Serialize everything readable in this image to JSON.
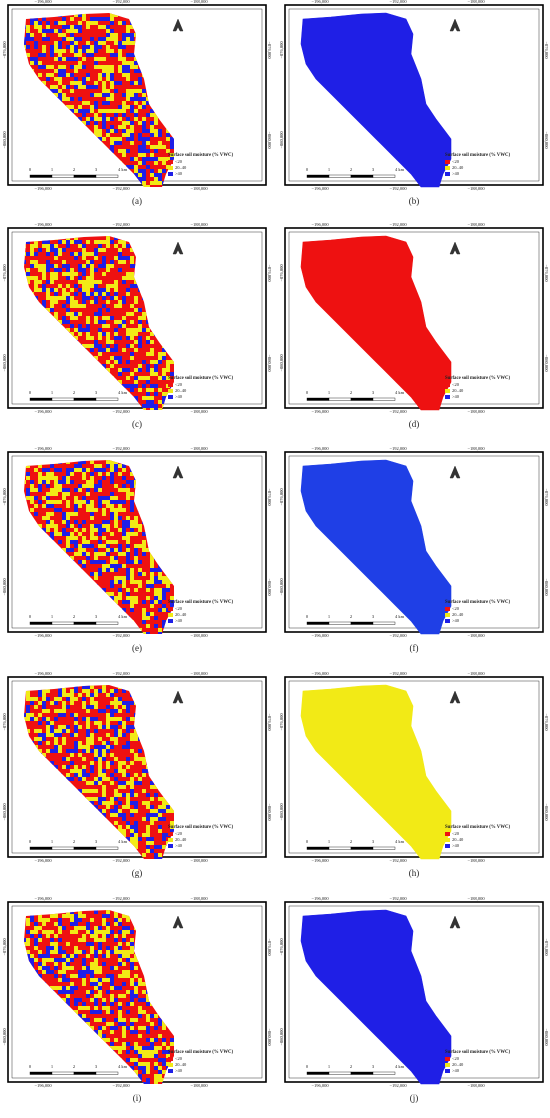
{
  "panels": [
    {
      "caption": "(a)",
      "fill": "mixed"
    },
    {
      "caption": "(b)",
      "fill": "#1f1fe6"
    },
    {
      "caption": "(c)",
      "fill": "mixed"
    },
    {
      "caption": "(d)",
      "fill": "#ee1111"
    },
    {
      "caption": "(e)",
      "fill": "mixed"
    },
    {
      "caption": "(f)",
      "fill": "#1f3fe6"
    },
    {
      "caption": "(g)",
      "fill": "mixed"
    },
    {
      "caption": "(h)",
      "fill": "#f2ea16"
    },
    {
      "caption": "(i)",
      "fill": "mixed"
    },
    {
      "caption": "(j)",
      "fill": "#1f1fe6"
    }
  ],
  "map": {
    "x_labels": [
      "−196,000",
      "−192,000",
      "−188,000"
    ],
    "y_labels": [
      "−076,000",
      "−080,000"
    ],
    "scale_labels": [
      "0",
      "1",
      "2",
      "3",
      "4 km"
    ],
    "legend": {
      "title": "Surface soil moisture (% VWC)",
      "items": [
        {
          "label": "<20",
          "color": "#ee1111"
        },
        {
          "label": "20–40",
          "color": "#f2ea16"
        },
        {
          "label": ">40",
          "color": "#1f1fe6"
        }
      ]
    }
  }
}
